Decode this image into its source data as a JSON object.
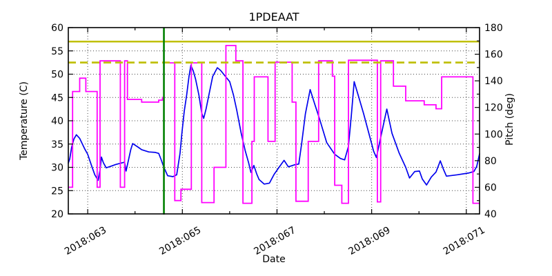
{
  "title": "1PDEAAT",
  "colors": {
    "temperature": "#0000ee",
    "pitch": "#ff00ff",
    "limit": "#c0c000",
    "now_line": "#008000",
    "grid": "#444444",
    "axis": "#000000",
    "background": "#ffffff"
  },
  "chart_data": {
    "type": "line",
    "title": "1PDEAAT",
    "xlabel": "Date",
    "ylabel_left": "Temperature (C)",
    "ylabel_right": "Pitch (deg)",
    "grid": "dotted, on major x and left-y ticks",
    "legend": "none",
    "x_axis": {
      "range": [
        62.59,
        71.28
      ],
      "major_ticks": [
        63,
        65,
        67,
        69,
        71
      ],
      "major_tick_labels": [
        "2018:063",
        "2018:065",
        "2018:067",
        "2018:069",
        "2018:071"
      ],
      "minor_ticks": [
        64,
        66,
        68,
        70
      ],
      "tick_label_rotation_deg": -30
    },
    "y_left": {
      "range": [
        20,
        60
      ],
      "ticks": [
        20,
        25,
        30,
        35,
        40,
        45,
        50,
        55,
        60
      ],
      "tick_labels": [
        "20",
        "25",
        "30",
        "35",
        "40",
        "45",
        "50",
        "55",
        "60"
      ]
    },
    "y_right": {
      "range": [
        40,
        180
      ],
      "ticks": [
        40,
        60,
        80,
        100,
        120,
        140,
        160,
        180
      ],
      "tick_labels": [
        "40",
        "60",
        "80",
        "100",
        "120",
        "140",
        "160",
        "180"
      ],
      "minor_ticks": [
        50,
        70,
        90,
        110,
        130,
        150,
        170
      ]
    },
    "series": [
      {
        "name": "temperature",
        "axis": "left",
        "style": "solid",
        "points": [
          [
            62.59,
            30.9
          ],
          [
            62.62,
            31.8
          ],
          [
            62.66,
            34.3
          ],
          [
            62.71,
            36.1
          ],
          [
            62.76,
            37.0
          ],
          [
            62.83,
            36.2
          ],
          [
            62.94,
            33.9
          ],
          [
            63.0,
            32.8
          ],
          [
            63.08,
            30.4
          ],
          [
            63.15,
            28.4
          ],
          [
            63.22,
            27.2
          ],
          [
            63.26,
            29.5
          ],
          [
            63.29,
            32.2
          ],
          [
            63.33,
            31.0
          ],
          [
            63.39,
            29.9
          ],
          [
            63.48,
            30.2
          ],
          [
            63.59,
            30.6
          ],
          [
            63.7,
            30.9
          ],
          [
            63.78,
            31.1
          ],
          [
            63.81,
            29.2
          ],
          [
            63.86,
            31.5
          ],
          [
            63.91,
            33.8
          ],
          [
            63.95,
            35.1
          ],
          [
            64.07,
            34.3
          ],
          [
            64.14,
            33.8
          ],
          [
            64.29,
            33.3
          ],
          [
            64.43,
            33.2
          ],
          [
            64.5,
            33.0
          ],
          [
            64.55,
            31.7
          ],
          [
            64.61,
            30.0
          ],
          [
            64.69,
            28.2
          ],
          [
            64.8,
            28.0
          ],
          [
            64.88,
            28.4
          ],
          [
            64.95,
            33.0
          ],
          [
            64.99,
            37.3
          ],
          [
            65.04,
            42.0
          ],
          [
            65.09,
            45.5
          ],
          [
            65.14,
            49.5
          ],
          [
            65.18,
            51.9
          ],
          [
            65.23,
            50.7
          ],
          [
            65.28,
            48.9
          ],
          [
            65.35,
            45.5
          ],
          [
            65.41,
            41.6
          ],
          [
            65.45,
            40.5
          ],
          [
            65.5,
            42.5
          ],
          [
            65.55,
            45.0
          ],
          [
            65.64,
            49.5
          ],
          [
            65.74,
            51.4
          ],
          [
            65.81,
            50.8
          ],
          [
            65.92,
            49.4
          ],
          [
            66.0,
            48.4
          ],
          [
            66.08,
            45.5
          ],
          [
            66.15,
            42.2
          ],
          [
            66.24,
            37.5
          ],
          [
            66.33,
            33.5
          ],
          [
            66.4,
            31.0
          ],
          [
            66.45,
            28.9
          ],
          [
            66.51,
            30.4
          ],
          [
            66.57,
            28.6
          ],
          [
            66.62,
            27.4
          ],
          [
            66.73,
            26.4
          ],
          [
            66.84,
            26.6
          ],
          [
            66.94,
            28.5
          ],
          [
            67.03,
            29.8
          ],
          [
            67.15,
            31.5
          ],
          [
            67.24,
            30.1
          ],
          [
            67.39,
            30.6
          ],
          [
            67.46,
            30.7
          ],
          [
            67.52,
            35.0
          ],
          [
            67.6,
            41.5
          ],
          [
            67.7,
            46.7
          ],
          [
            67.8,
            43.5
          ],
          [
            67.89,
            40.7
          ],
          [
            68.05,
            35.3
          ],
          [
            68.22,
            32.8
          ],
          [
            68.34,
            31.9
          ],
          [
            68.43,
            31.6
          ],
          [
            68.51,
            34.5
          ],
          [
            68.57,
            41.0
          ],
          [
            68.63,
            48.4
          ],
          [
            68.73,
            45.0
          ],
          [
            68.83,
            41.5
          ],
          [
            68.98,
            35.8
          ],
          [
            69.04,
            33.5
          ],
          [
            69.1,
            32.1
          ],
          [
            69.21,
            37.3
          ],
          [
            69.32,
            42.5
          ],
          [
            69.43,
            37.3
          ],
          [
            69.58,
            33.1
          ],
          [
            69.72,
            30.0
          ],
          [
            69.8,
            27.7
          ],
          [
            69.91,
            29.1
          ],
          [
            70.01,
            29.2
          ],
          [
            70.07,
            27.5
          ],
          [
            70.16,
            26.2
          ],
          [
            70.26,
            27.9
          ],
          [
            70.36,
            29.0
          ],
          [
            70.45,
            31.4
          ],
          [
            70.52,
            29.5
          ],
          [
            70.58,
            28.1
          ],
          [
            70.81,
            28.4
          ],
          [
            71.06,
            28.8
          ],
          [
            71.16,
            29.1
          ],
          [
            71.22,
            30.2
          ],
          [
            71.28,
            32.9
          ]
        ]
      },
      {
        "name": "pitch",
        "axis": "right",
        "style": "steps",
        "segments": [
          [
            62.59,
            62.68,
            60
          ],
          [
            62.68,
            62.83,
            132
          ],
          [
            62.83,
            62.96,
            142
          ],
          [
            62.96,
            63.2,
            132
          ],
          [
            63.2,
            63.26,
            60
          ],
          [
            63.26,
            63.69,
            155
          ],
          [
            63.69,
            63.78,
            60
          ],
          [
            63.78,
            63.84,
            155
          ],
          [
            63.84,
            64.14,
            126
          ],
          [
            64.14,
            64.5,
            124
          ],
          [
            64.5,
            64.58,
            125.5
          ],
          [
            64.58,
            64.61,
            127.5
          ],
          [
            64.61,
            64.84,
            153.5
          ],
          [
            64.84,
            64.97,
            50
          ],
          [
            64.97,
            65.19,
            58.5
          ],
          [
            65.19,
            65.41,
            153.5
          ],
          [
            65.41,
            65.67,
            48.5
          ],
          [
            65.67,
            65.92,
            75
          ],
          [
            65.92,
            66.13,
            166.5
          ],
          [
            66.13,
            66.28,
            155
          ],
          [
            66.28,
            66.47,
            48
          ],
          [
            66.47,
            66.52,
            94.5
          ],
          [
            66.52,
            66.81,
            143
          ],
          [
            66.81,
            66.96,
            94.5
          ],
          [
            66.96,
            67.32,
            154
          ],
          [
            67.32,
            67.4,
            124
          ],
          [
            67.4,
            67.66,
            49.5
          ],
          [
            67.66,
            67.88,
            94.5
          ],
          [
            67.88,
            68.17,
            155
          ],
          [
            68.17,
            68.22,
            143.5
          ],
          [
            68.22,
            68.37,
            61.5
          ],
          [
            68.37,
            68.51,
            48
          ],
          [
            68.51,
            69.12,
            155.5
          ],
          [
            69.12,
            69.19,
            49
          ],
          [
            69.19,
            69.46,
            155
          ],
          [
            69.46,
            69.72,
            136
          ],
          [
            69.72,
            70.11,
            125
          ],
          [
            70.11,
            70.36,
            122
          ],
          [
            70.36,
            70.48,
            119
          ],
          [
            70.48,
            71.14,
            143
          ],
          [
            71.14,
            71.28,
            48
          ]
        ]
      }
    ],
    "annotations": [
      {
        "type": "hline",
        "axis": "left",
        "value": 57,
        "style": "solid",
        "role": "limit-line"
      },
      {
        "type": "hline",
        "axis": "left",
        "value": 52.5,
        "style": "dashed",
        "role": "limit-line"
      },
      {
        "type": "vline",
        "value": 64.61,
        "style": "solid",
        "role": "now-line"
      }
    ]
  }
}
